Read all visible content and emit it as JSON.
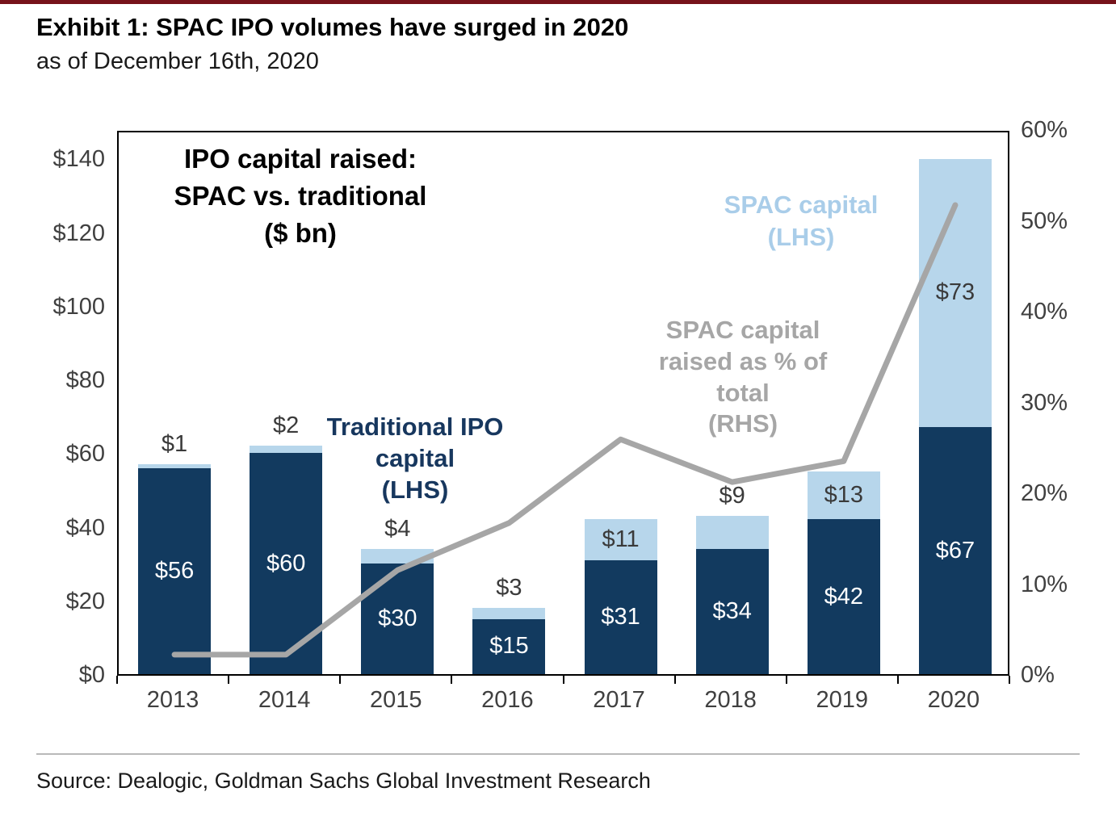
{
  "header": {
    "title": "Exhibit 1: SPAC IPO volumes have surged in 2020",
    "subtitle": "as of December 16th, 2020"
  },
  "footer": {
    "source": "Source: Dealogic, Goldman Sachs Global Investment Research"
  },
  "colors": {
    "traditional_bar": "#123A5F",
    "spac_bar": "#B7D6EB",
    "pct_line": "#A6A6A6",
    "top_rule": "#76121A"
  },
  "annotations": [
    {
      "id": "chart-inner-title",
      "text": "IPO capital raised:\nSPAC vs. traditional\n($ bn)",
      "color": "#000000"
    },
    {
      "id": "spac-capital-label",
      "text": "SPAC capital\n(LHS)",
      "color": "#A9CDE9"
    },
    {
      "id": "pct-of-total-label",
      "text": "SPAC capital\nraised as % of\ntotal\n(RHS)",
      "color": "#A6A6A6"
    },
    {
      "id": "traditional-capital-label",
      "text": "Traditional IPO\ncapital\n(LHS)",
      "color": "#17375E"
    }
  ],
  "chart_data": {
    "type": "bar",
    "subtype": "stacked-bar-with-line",
    "title": "IPO capital raised: SPAC vs. traditional ($ bn)",
    "categories": [
      "2013",
      "2014",
      "2015",
      "2016",
      "2017",
      "2018",
      "2019",
      "2020"
    ],
    "series": [
      {
        "name": "Traditional IPO capital (LHS)",
        "type": "bar",
        "axis": "left",
        "color": "#123A5F",
        "values": [
          56,
          60,
          30,
          15,
          31,
          34,
          42,
          67
        ]
      },
      {
        "name": "SPAC capital (LHS)",
        "type": "bar",
        "axis": "left",
        "color": "#B7D6EB",
        "values": [
          1,
          2,
          4,
          3,
          11,
          9,
          13,
          73
        ],
        "label_pos": [
          "above",
          "above",
          "above",
          "above",
          "inside",
          "above",
          "inside",
          "inside"
        ]
      },
      {
        "name": "SPAC capital raised as % of total (RHS)",
        "type": "line",
        "axis": "right",
        "color": "#A6A6A6",
        "values": [
          2.5,
          2.5,
          11.8,
          17,
          26.2,
          21.5,
          23.8,
          52
        ]
      }
    ],
    "left_axis": {
      "ticks": [
        "$0",
        "$20",
        "$40",
        "$60",
        "$80",
        "$100",
        "$120",
        "$140"
      ],
      "min": 0,
      "max": 148,
      "tick_step": 20
    },
    "right_axis": {
      "ticks": [
        "0%",
        "10%",
        "20%",
        "30%",
        "40%",
        "50%",
        "60%"
      ],
      "min": 0,
      "max": 60,
      "tick_step": 10
    },
    "grid": false,
    "legend": "in-chart annotations"
  }
}
